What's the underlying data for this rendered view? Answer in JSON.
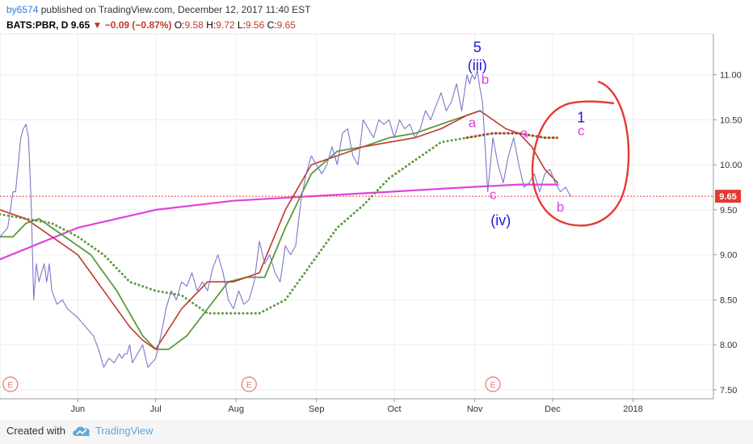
{
  "header": {
    "user": "by6574",
    "published": "published on TradingView.com, December 12, 2017 11:40 EST",
    "symbol": "BATS:PBR, D",
    "last": "9.65",
    "change": "−0.09 (−0.87%)",
    "o_label": "O:",
    "o_value": "9.58",
    "h_label": "H:",
    "h_value": "9.72",
    "l_label": "L:",
    "l_value": "9.56",
    "c_label": "C:",
    "c_value": "9.65"
  },
  "footer": {
    "created": "Created with",
    "brand": "TradingView"
  },
  "chart_data": {
    "type": "line",
    "ylim": [
      7.4,
      11.4
    ],
    "y_ticks": [
      "11.00",
      "10.50",
      "10.00",
      "9.50",
      "9.00",
      "8.50",
      "8.00",
      "7.50"
    ],
    "y_tick_values": [
      11.0,
      10.5,
      10.0,
      9.5,
      9.0,
      8.5,
      8.0,
      7.5
    ],
    "x_ticks": [
      "Jun",
      "Jul",
      "Aug",
      "Sep",
      "Oct",
      "Nov",
      "Dec",
      "2018"
    ],
    "x_tick_days": [
      30,
      60,
      91,
      122,
      152,
      183,
      213,
      244
    ],
    "x_range_days": [
      0,
      275
    ],
    "price_label": "9.65",
    "price_level": 9.65,
    "colors": {
      "price": "#7b77c9",
      "ma_fast": "#c0392b",
      "ma_mid": "#5b9a3e",
      "ma_slow_dotted": "#5b9a3e",
      "ma_long": "#e040e0",
      "price_line": "#e53935",
      "annotation": "#e53935"
    },
    "series": [
      {
        "key": "price",
        "x": [
          0,
          3,
          5,
          6,
          8,
          9,
          10,
          11,
          12,
          13,
          14,
          15,
          16,
          17,
          18,
          19,
          20,
          22,
          24,
          26,
          28,
          30,
          33,
          36,
          38,
          40,
          42,
          44,
          46,
          47,
          48,
          49,
          50,
          51,
          53,
          55,
          57,
          60,
          62,
          64,
          66,
          68,
          70,
          72,
          74,
          76,
          78,
          80,
          82,
          84,
          86,
          88,
          90,
          92,
          94,
          96,
          98,
          100,
          102,
          104,
          106,
          108,
          110,
          112,
          114,
          116,
          118,
          120,
          122,
          124,
          126,
          128,
          130,
          132,
          134,
          136,
          138,
          140,
          142,
          144,
          146,
          148,
          150,
          152,
          154,
          156,
          158,
          160,
          162,
          164,
          166,
          168,
          170,
          172,
          174,
          176,
          178,
          180,
          181,
          182,
          183,
          184,
          185,
          186,
          188,
          190,
          192,
          194,
          196,
          198,
          200,
          202,
          204,
          206,
          208,
          210,
          212,
          214,
          216,
          218,
          220
        ],
        "values": [
          9.2,
          9.3,
          9.7,
          9.7,
          10.3,
          10.4,
          10.45,
          10.3,
          9.6,
          8.5,
          8.9,
          8.7,
          8.8,
          8.9,
          8.7,
          8.9,
          8.6,
          8.45,
          8.5,
          8.4,
          8.35,
          8.3,
          8.2,
          8.1,
          7.95,
          7.75,
          7.85,
          7.8,
          7.9,
          7.85,
          7.9,
          7.9,
          8.0,
          7.8,
          7.9,
          8.0,
          7.75,
          7.85,
          8.1,
          8.4,
          8.6,
          8.5,
          8.7,
          8.65,
          8.8,
          8.6,
          8.7,
          8.6,
          8.85,
          9.0,
          8.8,
          8.5,
          8.4,
          8.6,
          8.45,
          8.5,
          8.7,
          9.15,
          8.9,
          9.0,
          8.8,
          8.7,
          9.1,
          9.0,
          9.1,
          9.6,
          9.9,
          10.1,
          10.0,
          9.9,
          10.0,
          10.2,
          10.0,
          10.35,
          10.4,
          10.1,
          10.0,
          10.5,
          10.4,
          10.3,
          10.5,
          10.45,
          10.5,
          10.3,
          10.5,
          10.4,
          10.45,
          10.3,
          10.4,
          10.6,
          10.5,
          10.65,
          10.8,
          10.6,
          10.7,
          10.9,
          10.6,
          11.0,
          10.9,
          11.0,
          10.95,
          11.05,
          10.85,
          10.7,
          9.7,
          10.3,
          10.0,
          9.8,
          10.1,
          10.3,
          10.0,
          9.75,
          9.8,
          9.9,
          9.7,
          9.9,
          9.95,
          9.8,
          9.7,
          9.75,
          9.65
        ]
      },
      {
        "key": "ma_fast",
        "x": [
          0,
          10,
          20,
          30,
          40,
          50,
          55,
          60,
          70,
          80,
          90,
          100,
          110,
          120,
          130,
          140,
          150,
          160,
          170,
          180,
          185,
          190,
          195,
          200,
          205,
          210,
          215
        ],
        "values": [
          9.5,
          9.4,
          9.2,
          9.0,
          8.6,
          8.2,
          8.05,
          7.95,
          8.4,
          8.7,
          8.7,
          8.8,
          9.5,
          10.0,
          10.1,
          10.2,
          10.25,
          10.3,
          10.4,
          10.55,
          10.6,
          10.5,
          10.4,
          10.35,
          10.2,
          9.95,
          9.8
        ]
      },
      {
        "key": "ma_mid",
        "x": [
          0,
          5,
          10,
          15,
          25,
          35,
          45,
          55,
          60,
          65,
          72,
          80,
          88,
          95,
          102,
          110,
          120,
          130,
          140,
          150,
          160,
          170,
          180,
          185
        ],
        "values": [
          9.2,
          9.2,
          9.35,
          9.4,
          9.2,
          9.0,
          8.6,
          8.1,
          7.95,
          7.95,
          8.1,
          8.4,
          8.7,
          8.75,
          8.75,
          9.3,
          9.9,
          10.15,
          10.2,
          10.3,
          10.35,
          10.45,
          10.55,
          10.6
        ]
      },
      {
        "key": "ma_slow_dotted",
        "x": [
          0,
          10,
          20,
          30,
          40,
          50,
          60,
          70,
          80,
          90,
          100,
          110,
          120,
          130,
          140,
          150,
          160,
          170,
          180,
          190,
          200,
          210,
          215
        ],
        "values": [
          9.45,
          9.4,
          9.35,
          9.2,
          9.0,
          8.7,
          8.6,
          8.55,
          8.35,
          8.35,
          8.35,
          8.5,
          8.9,
          9.3,
          9.55,
          9.85,
          10.05,
          10.25,
          10.3,
          10.35,
          10.35,
          10.3,
          10.3
        ]
      },
      {
        "key": "ma_long",
        "x": [
          0,
          30,
          60,
          90,
          120,
          150,
          180,
          200,
          215
        ],
        "values": [
          8.95,
          9.3,
          9.5,
          9.6,
          9.65,
          9.7,
          9.75,
          9.78,
          9.78
        ]
      }
    ],
    "event_markers": [
      {
        "label": "E",
        "x": 4
      },
      {
        "label": "E",
        "x": 96
      },
      {
        "label": "E",
        "x": 190
      }
    ],
    "annotations": [
      {
        "text": "5",
        "x": 184,
        "y": 11.25,
        "color": "#1a1ad6",
        "size": 18
      },
      {
        "text": "(iii)",
        "x": 184,
        "y": 11.05,
        "color": "#1a1ad6",
        "size": 18
      },
      {
        "text": "b",
        "x": 187,
        "y": 10.9,
        "color": "#e040e0",
        "size": 17
      },
      {
        "text": "a",
        "x": 182,
        "y": 10.42,
        "color": "#e040e0",
        "size": 17
      },
      {
        "text": "a",
        "x": 202,
        "y": 10.3,
        "color": "#e040e0",
        "size": 17
      },
      {
        "text": "1",
        "x": 224,
        "y": 10.47,
        "color": "#1a1ad6",
        "size": 18
      },
      {
        "text": "c",
        "x": 224,
        "y": 10.33,
        "color": "#e040e0",
        "size": 17
      },
      {
        "text": "c",
        "x": 190,
        "y": 9.62,
        "color": "#e040e0",
        "size": 17
      },
      {
        "text": "(iv)",
        "x": 193,
        "y": 9.33,
        "color": "#1a1ad6",
        "size": 18
      },
      {
        "text": "b",
        "x": 216,
        "y": 9.48,
        "color": "#e040e0",
        "size": 17
      }
    ]
  }
}
